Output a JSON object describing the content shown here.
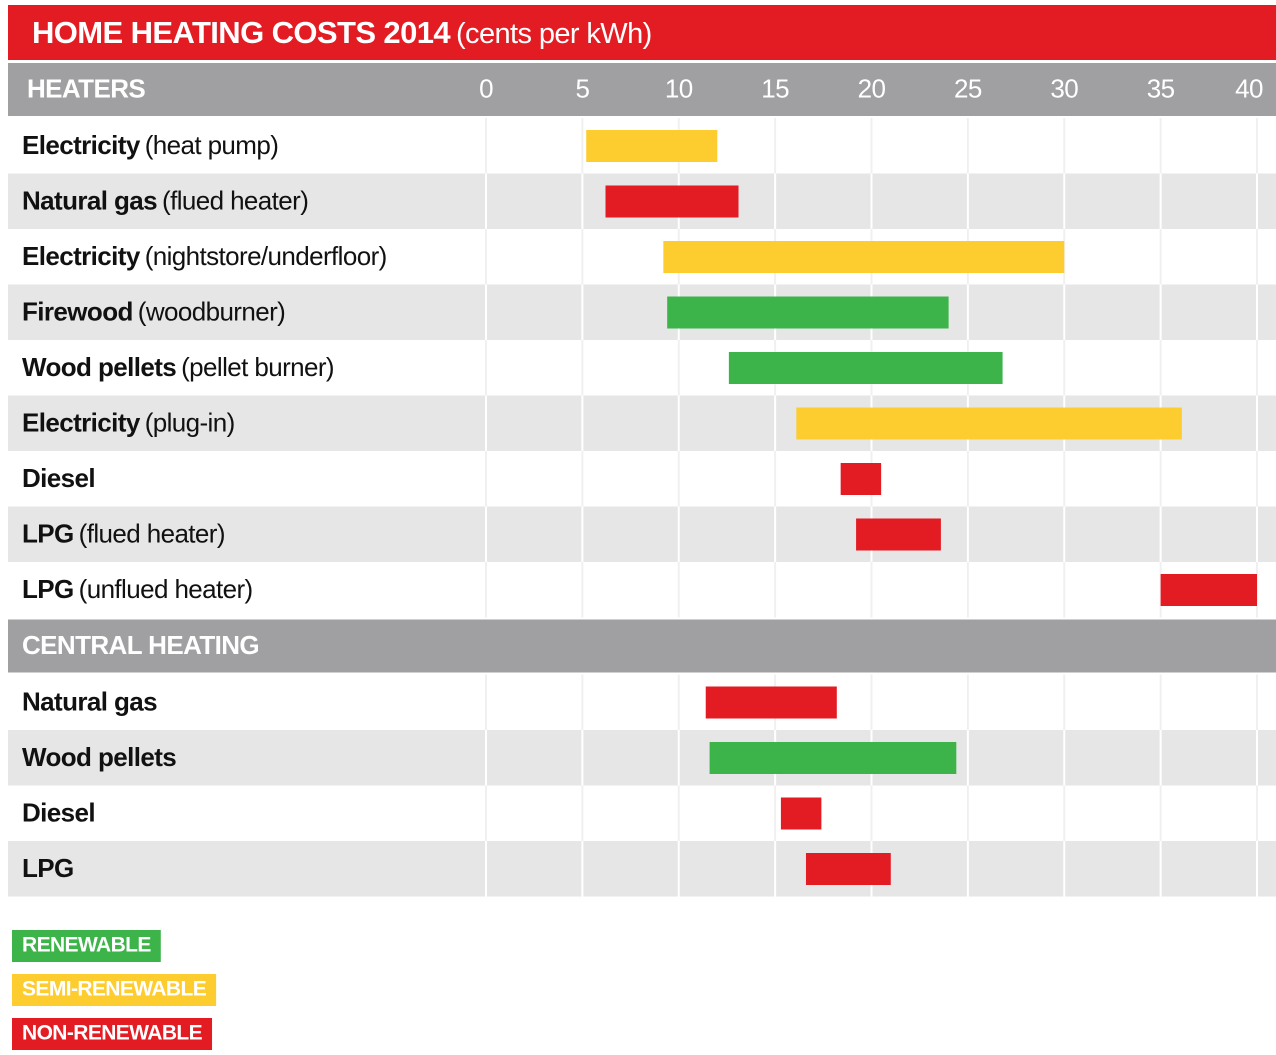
{
  "chart_data": {
    "type": "range_bar",
    "title": "HOME HEATING COSTS 2014",
    "subtitle": "(cents per kWh)",
    "xlim": [
      0,
      40
    ],
    "xticks": [
      0,
      5,
      10,
      15,
      20,
      25,
      30,
      35,
      40
    ],
    "grid": true,
    "groups": [
      {
        "name": "HEATERS",
        "rows": [
          {
            "name": "Electricity",
            "detail": "(heat pump)",
            "low": 5.2,
            "high": 12,
            "color": "#fdcc2f"
          },
          {
            "name": "Natural gas",
            "detail": "(flued heater)",
            "low": 6.2,
            "high": 13.1,
            "color": "#e31b23"
          },
          {
            "name": "Electricity",
            "detail": "(nightstore/underfloor)",
            "low": 9.2,
            "high": 30,
            "color": "#fdcc2f"
          },
          {
            "name": "Firewood",
            "detail": "(woodburner)",
            "low": 9.4,
            "high": 24,
            "color": "#3cb44a"
          },
          {
            "name": "Wood pellets",
            "detail": "(pellet burner)",
            "low": 12.6,
            "high": 26.8,
            "color": "#3cb44a"
          },
          {
            "name": "Electricity",
            "detail": "(plug-in)",
            "low": 16.1,
            "high": 36.1,
            "color": "#fdcc2f"
          },
          {
            "name": "Diesel",
            "low": 18.4,
            "high": 20.5,
            "color": "#e31b23"
          },
          {
            "name": "LPG",
            "detail": "(flued heater)",
            "low": 19.2,
            "high": 23.6,
            "color": "#e31b23"
          },
          {
            "name": "LPG",
            "detail": "(unflued heater)",
            "low": 35,
            "high": 40,
            "color": "#e31b23"
          }
        ]
      },
      {
        "name": "CENTRAL HEATING",
        "rows": [
          {
            "name": "Natural gas",
            "low": 11.4,
            "high": 18.2,
            "color": "#e31b23"
          },
          {
            "name": "Wood pellets",
            "low": 11.6,
            "high": 24.4,
            "color": "#3cb44a"
          },
          {
            "name": "Diesel",
            "low": 15.3,
            "high": 17.4,
            "color": "#e31b23"
          },
          {
            "name": "LPG",
            "low": 16.6,
            "high": 21,
            "color": "#e31b23"
          }
        ]
      }
    ],
    "legend": [
      {
        "name": "RENEWABLE",
        "color": "#3cb44a"
      },
      {
        "name": "SEMI-RENEWABLE",
        "color": "#fdcc2f"
      },
      {
        "name": "NON-RENEWABLE",
        "color": "#e31b23"
      }
    ]
  }
}
